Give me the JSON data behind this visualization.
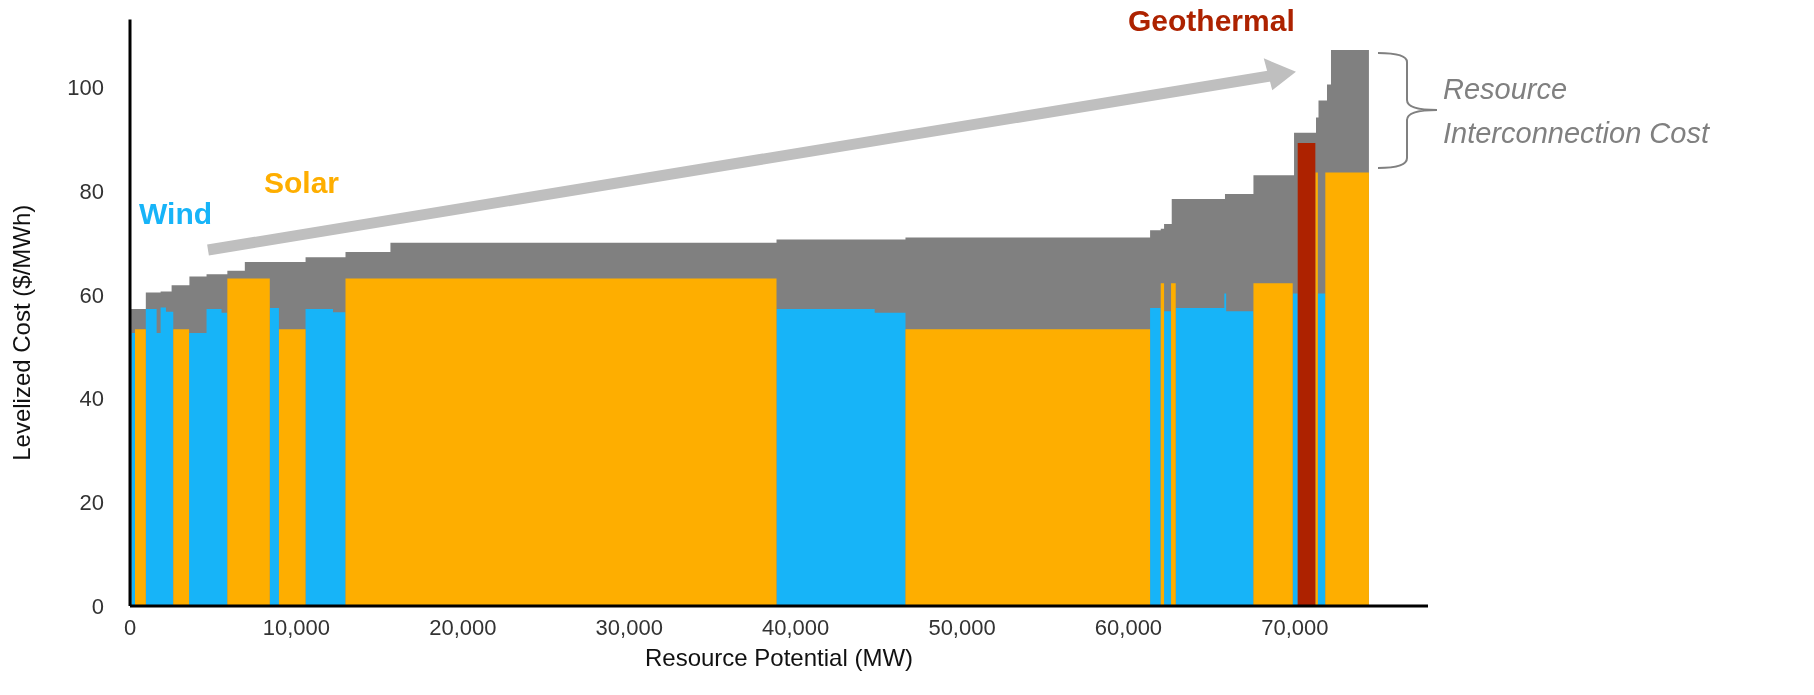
{
  "chart_data": {
    "type": "area",
    "xlabel": "Resource Potential (MW)",
    "ylabel": "Levelized Cost ($/MWh)",
    "xlim": [
      0,
      78000
    ],
    "ylim": [
      0,
      113
    ],
    "xticks": [
      0,
      {
        "value": 10000,
        "label": "10,000"
      },
      {
        "value": 20000,
        "label": "20,000"
      },
      {
        "value": 30000,
        "label": "30,000"
      },
      {
        "value": 40000,
        "label": "40,000"
      },
      {
        "value": 50000,
        "label": "50,000"
      },
      {
        "value": 60000,
        "label": "60,000"
      },
      {
        "value": 70000,
        "label": "70,000"
      }
    ],
    "yticks": [
      0,
      20,
      40,
      60,
      80,
      100
    ],
    "grid": false,
    "legend": false,
    "series": [
      {
        "name": "Resource Interconnection Cost",
        "color": "#808080",
        "x": [
          0,
          950,
          950,
          1840,
          1840,
          2500,
          2500,
          3570,
          3570,
          4600,
          4600,
          5850,
          5850,
          6900,
          6900,
          10550,
          10550,
          12950,
          12950,
          15650,
          15650,
          38850,
          38850,
          46600,
          46600,
          61300,
          61300,
          61940,
          61940,
          62140,
          62140,
          62600,
          62600,
          65800,
          65800,
          67510,
          67510,
          69950,
          69950,
          71270,
          71270,
          71420,
          71420,
          71930,
          71930,
          72170,
          72170,
          74450
        ],
        "values": [
          57.2,
          57.2,
          60.4,
          60.4,
          60.6,
          60.6,
          61.8,
          61.8,
          63.5,
          63.5,
          63.9,
          63.9,
          64.6,
          64.6,
          66.3,
          66.3,
          67.2,
          67.2,
          68.2,
          68.2,
          70.0,
          70.0,
          70.6,
          70.6,
          71.0,
          71.0,
          72.4,
          72.4,
          72.7,
          72.7,
          73.6,
          73.6,
          78.4,
          78.4,
          79.4,
          79.4,
          83.0,
          83.0,
          91.2,
          91.2,
          94.1,
          94.1,
          97.4,
          97.4,
          100.5,
          100.5,
          107.1,
          107.1
        ]
      },
      {
        "name": "Wind",
        "color": "#17b4f8",
        "x": [
          100,
          300,
          null,
          950,
          1600,
          1600,
          1840,
          1840,
          2160,
          2160,
          2600,
          null,
          3550,
          4600,
          4600,
          5500,
          5500,
          5850,
          null,
          8400,
          8950,
          null,
          10550,
          12200,
          12200,
          12950,
          null,
          38850,
          44750,
          44750,
          46600,
          null,
          61300,
          61940,
          null,
          62140,
          62560,
          null,
          62840,
          65760,
          65760,
          65870,
          65870,
          67510,
          null,
          69870,
          70170,
          null,
          71380,
          71830
        ],
        "values": [
          52.6,
          52.6,
          null,
          57.2,
          57.2,
          52.6,
          52.6,
          57.5,
          57.5,
          56.7,
          56.7,
          null,
          52.6,
          52.6,
          57.2,
          57.2,
          56.5,
          56.5,
          null,
          57.4,
          57.4,
          null,
          57.2,
          57.2,
          56.6,
          56.6,
          null,
          57.2,
          57.2,
          56.5,
          56.5,
          null,
          57.4,
          57.4,
          null,
          56.8,
          56.8,
          null,
          57.4,
          57.4,
          60.2,
          60.2,
          56.8,
          56.8,
          null,
          60.2,
          60.2,
          null,
          60.2,
          60.2
        ]
      },
      {
        "name": "Solar",
        "color": "#feae00",
        "x": [
          300,
          950,
          null,
          2600,
          3550,
          null,
          5850,
          8400,
          null,
          8950,
          10550,
          null,
          12950,
          38850,
          null,
          46600,
          61300,
          null,
          61940,
          62140,
          null,
          62560,
          62840,
          null,
          67510,
          69870,
          null,
          71230,
          71380,
          null,
          71830,
          74450
        ],
        "values": [
          53.3,
          53.3,
          null,
          53.3,
          53.3,
          null,
          63.1,
          63.1,
          null,
          53.3,
          53.3,
          null,
          63.1,
          63.1,
          null,
          53.3,
          53.3,
          null,
          62.2,
          62.2,
          null,
          62.2,
          62.2,
          null,
          62.2,
          62.2,
          null,
          83.5,
          83.5,
          null,
          83.5,
          83.5
        ]
      },
      {
        "name": "Geothermal",
        "color": "#ad2200",
        "x": [
          70170,
          71230
        ],
        "values": [
          89.2,
          89.2
        ]
      }
    ]
  }
}
